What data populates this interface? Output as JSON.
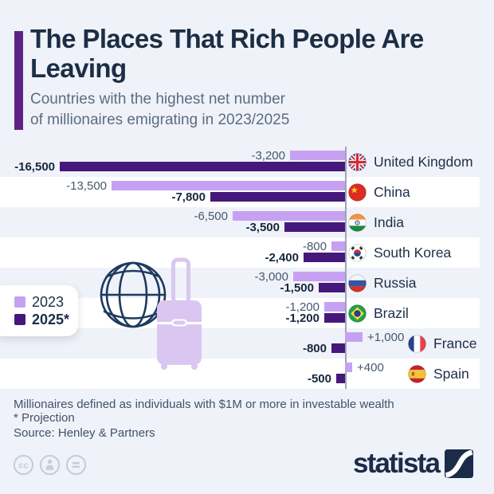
{
  "header": {
    "title": "The Places That Rich People Are Leaving",
    "subtitle_lines": [
      "Countries with the highest net number",
      "of millionaires emigrating in 2023/2025"
    ]
  },
  "legend": {
    "items": [
      {
        "label": "2023",
        "bold": false
      },
      {
        "label": "2025*",
        "bold": true
      }
    ]
  },
  "chart_data": {
    "type": "bar",
    "orientation": "horizontal",
    "unit": "net number of millionaires emigrating",
    "axis_side": "right",
    "xlim": [
      -16500,
      1000
    ],
    "categories": [
      "United Kingdom",
      "China",
      "India",
      "South Korea",
      "Russia",
      "Brazil",
      "France",
      "Spain"
    ],
    "flags": [
      "uk",
      "china",
      "india",
      "south-korea",
      "russia",
      "brazil",
      "france",
      "spain"
    ],
    "series": [
      {
        "name": "2023",
        "color": "#c6a1f2",
        "values": [
          -3200,
          -13500,
          -6500,
          -800,
          -3000,
          -1200,
          1000,
          400
        ],
        "labels": [
          "-3,200",
          "-13,500",
          "-6,500",
          "-800",
          "-3,000",
          "-1,200",
          "+1,000",
          "+400"
        ]
      },
      {
        "name": "2025*",
        "color": "#46187c",
        "values": [
          -16500,
          -7800,
          -3500,
          -2400,
          -1500,
          -1200,
          -800,
          -500
        ],
        "labels": [
          "-16,500",
          "-7,800",
          "-3,500",
          "-2,400",
          "-1,500",
          "-1,200",
          "-800",
          "-500"
        ]
      }
    ]
  },
  "footnotes": [
    "Millionaires defined as individuals with $1M or more in investable wealth",
    "* Projection"
  ],
  "source": "Source: Henley & Partners",
  "branding": {
    "logo_text": "statista"
  },
  "license_icons": [
    {
      "name": "cc-icon"
    },
    {
      "name": "attribution-icon"
    },
    {
      "name": "equal-icon"
    }
  ],
  "colors": {
    "background": "#eff2f8",
    "row_stripe": "#ffffff",
    "accent_bar": "#5e2286",
    "bar_2023": "#c6a1f2",
    "bar_2025": "#46187c",
    "title": "#1c2e45",
    "subtitle": "#5a6d82",
    "axis": "#9aa6b6",
    "logo_navy": "#1b2b49",
    "suitcase": "#d9c7f1",
    "globe_stroke": "#1d3a5f"
  }
}
